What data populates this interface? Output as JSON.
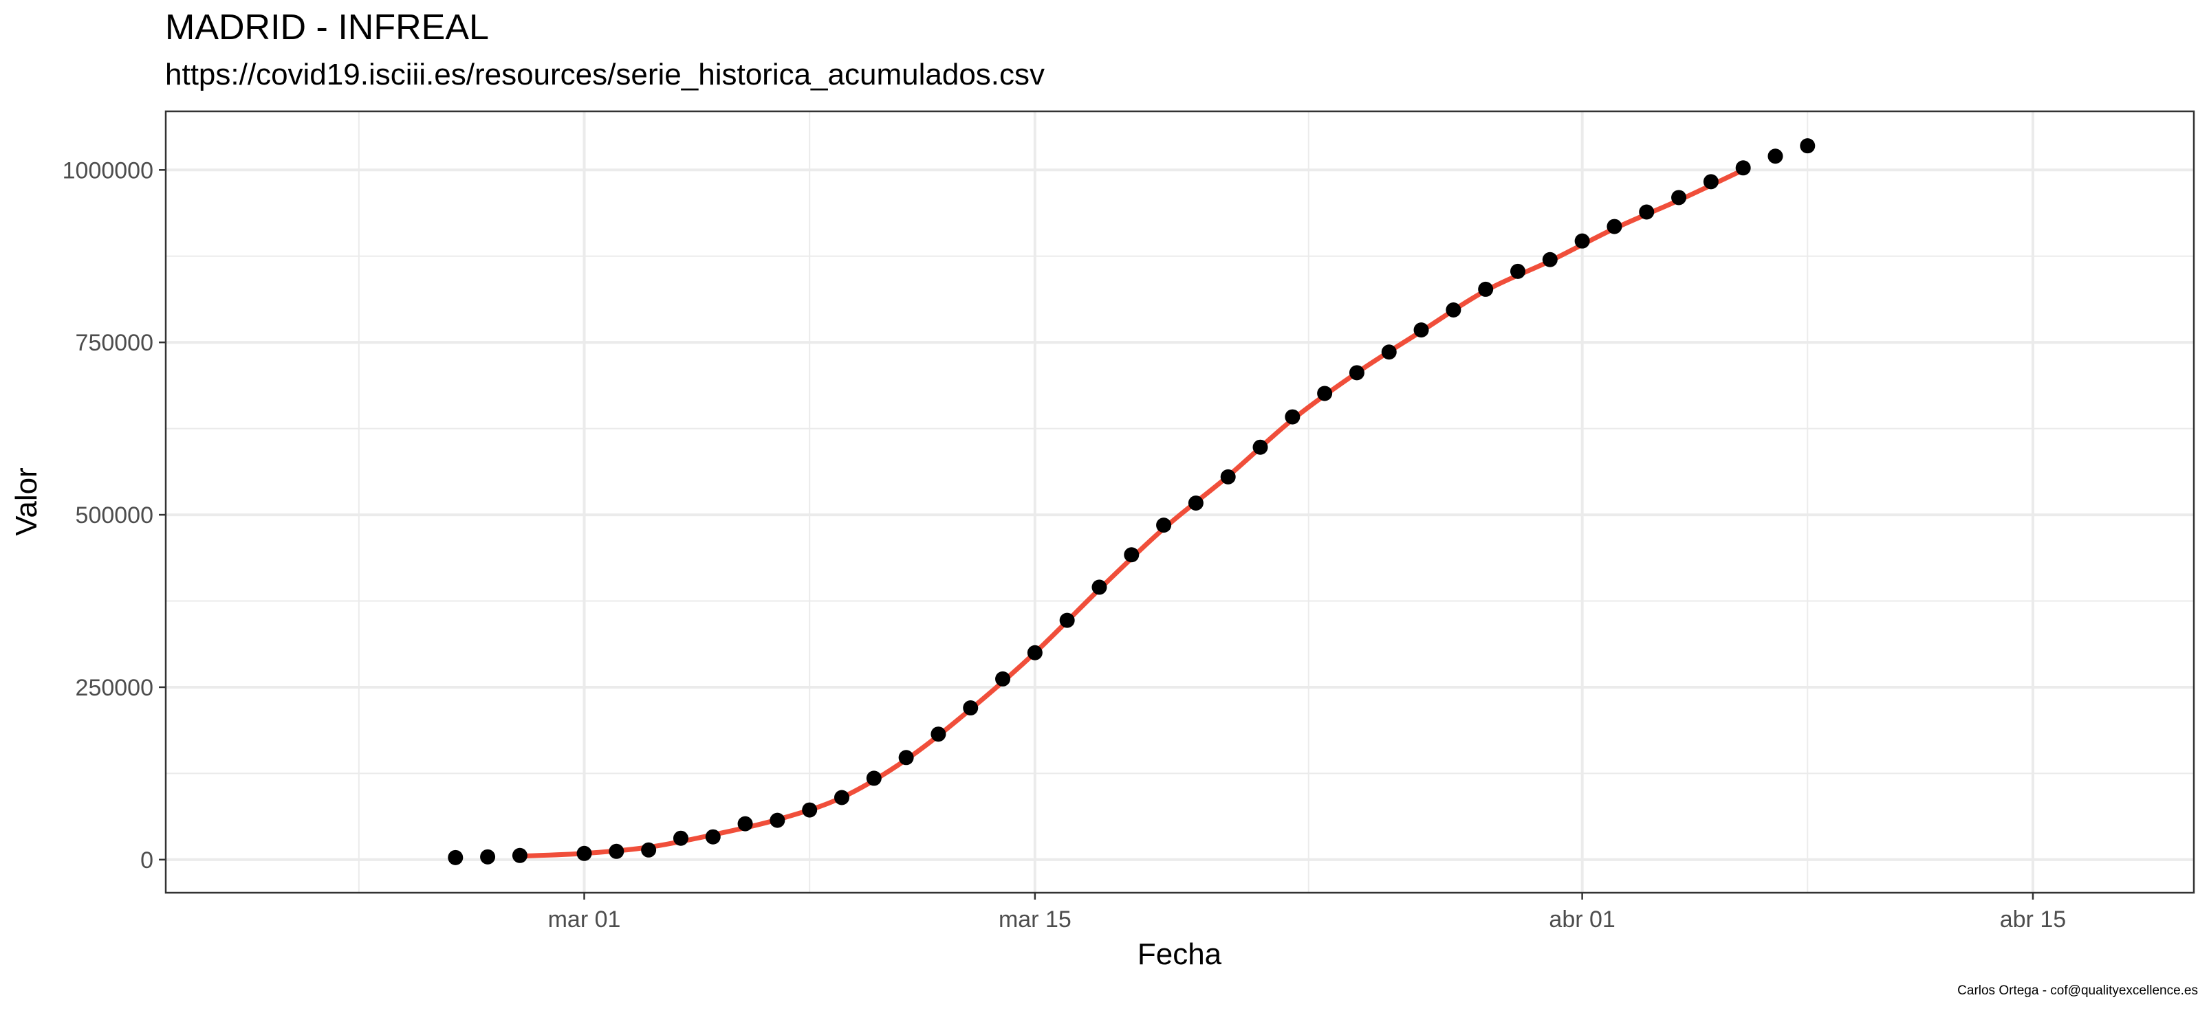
{
  "chart_data": {
    "type": "scatter",
    "title": "MADRID - INFREAL",
    "subtitle": "https://covid19.isciii.es/resources/serie_historica_acumulados.csv",
    "caption": "Carlos Ortega - cof@qualityexcellence.es",
    "xlabel": "Fecha",
    "ylabel": "Valor",
    "xlim": [
      "2020-02-17",
      "2020-04-20"
    ],
    "ylim": [
      -48000,
      1085000
    ],
    "x_ticks": [
      {
        "date": "2020-03-01",
        "label": "mar 01"
      },
      {
        "date": "2020-03-15",
        "label": "mar 15"
      },
      {
        "date": "2020-04-01",
        "label": "abr 01"
      },
      {
        "date": "2020-04-15",
        "label": "abr 15"
      }
    ],
    "y_ticks": [
      {
        "value": 0,
        "label": "0"
      },
      {
        "value": 250000,
        "label": "250000"
      },
      {
        "value": 500000,
        "label": "500000"
      },
      {
        "value": 750000,
        "label": "750000"
      },
      {
        "value": 1000000,
        "label": "1000000"
      }
    ],
    "grid": true,
    "colors": {
      "points": "#000000",
      "smooth_line": "#F04E3A",
      "grid": "#EBEBEB",
      "panel_border": "#333333"
    },
    "series": [
      {
        "kind": "points",
        "x": [
          "2020-02-26",
          "2020-02-27",
          "2020-02-28",
          "2020-02-29",
          "2020-03-01",
          "2020-03-02",
          "2020-03-03",
          "2020-03-04",
          "2020-03-05",
          "2020-03-06",
          "2020-03-07",
          "2020-03-08",
          "2020-03-09",
          "2020-03-10",
          "2020-03-11",
          "2020-03-12",
          "2020-03-13",
          "2020-03-14",
          "2020-03-15",
          "2020-03-16",
          "2020-03-17",
          "2020-03-18",
          "2020-03-19",
          "2020-03-20",
          "2020-03-21",
          "2020-03-22",
          "2020-03-23",
          "2020-03-24",
          "2020-03-25",
          "2020-03-26",
          "2020-03-27",
          "2020-03-28",
          "2020-03-29",
          "2020-03-30",
          "2020-03-31",
          "2020-04-01",
          "2020-04-02",
          "2020-04-03",
          "2020-04-04",
          "2020-04-05",
          "2020-04-06",
          "2020-04-07",
          "2020-04-08"
        ],
        "y": [
          3000,
          4000,
          6000,
          null,
          9000,
          12000,
          14000,
          31000,
          33000,
          52000,
          57000,
          72000,
          90000,
          118000,
          148000,
          182000,
          220000,
          262000,
          300000,
          347000,
          395000,
          442000,
          485000,
          517000,
          555000,
          598000,
          642000,
          676000,
          706000,
          736000,
          768000,
          797000,
          827000,
          853000,
          870000,
          897000,
          918000,
          939000,
          960000,
          983000,
          1003000,
          1020000,
          1035000
        ]
      },
      {
        "kind": "smooth",
        "x": [
          "2020-02-28",
          "2020-03-01",
          "2020-03-03",
          "2020-03-05",
          "2020-03-07",
          "2020-03-09",
          "2020-03-11",
          "2020-03-13",
          "2020-03-15",
          "2020-03-17",
          "2020-03-19",
          "2020-03-21",
          "2020-03-23",
          "2020-03-25",
          "2020-03-27",
          "2020-03-29",
          "2020-03-31",
          "2020-04-02",
          "2020-04-04",
          "2020-04-06"
        ],
        "y": [
          5000,
          9000,
          18000,
          36000,
          58000,
          90000,
          145000,
          218000,
          300000,
          392000,
          480000,
          556000,
          638000,
          706000,
          766000,
          825000,
          868000,
          915000,
          956000,
          1000000
        ]
      }
    ]
  }
}
